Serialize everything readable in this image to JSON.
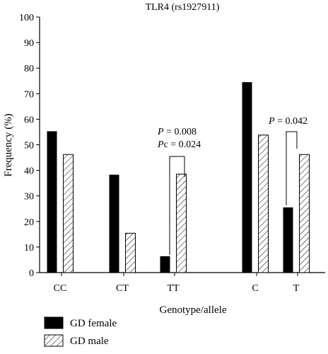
{
  "chart_data": {
    "type": "bar",
    "title": "TLR4 (rs1927911)",
    "xlabel": "Genotype/allele",
    "ylabel": "Frequency (%)",
    "ylim": [
      0,
      100
    ],
    "yticks": [
      0,
      10,
      20,
      30,
      40,
      50,
      60,
      70,
      80,
      90,
      100
    ],
    "categories": [
      "CC",
      "CT",
      "TT",
      "C",
      "T"
    ],
    "series": [
      {
        "name": "GD female",
        "values": [
          55.3,
          38.3,
          6.4,
          74.5,
          25.5
        ],
        "color": "#000000",
        "pattern": "solid"
      },
      {
        "name": "GD male",
        "values": [
          46.2,
          15.4,
          38.5,
          53.8,
          46.2
        ],
        "color": "#ffffff",
        "pattern": "diagonal-hatch"
      }
    ],
    "legend_position": "bottom-left",
    "annotations": [
      {
        "category": "TT",
        "lines": [
          {
            "italic": "P",
            "rest": " = 0.008"
          },
          {
            "italic": "P",
            "rest": "c = 0.024"
          }
        ]
      },
      {
        "category": "T",
        "lines": [
          {
            "italic": "P",
            "rest": " = 0.042"
          }
        ]
      }
    ]
  }
}
